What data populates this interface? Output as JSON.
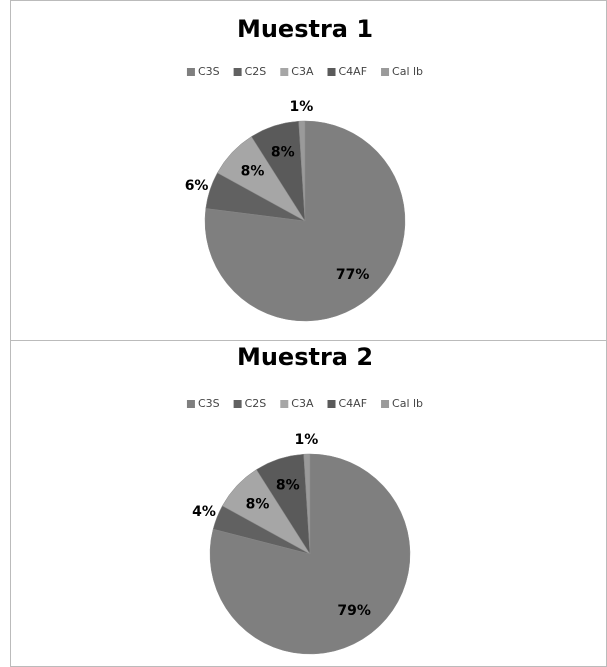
{
  "chart_data": [
    {
      "type": "pie",
      "title": "Muestra 1",
      "categories": [
        "C3S",
        "C2S",
        "C3A",
        "C4AF",
        "Cal lb"
      ],
      "values": [
        77,
        6,
        8,
        8,
        1
      ],
      "value_labels": [
        "77%",
        "6%",
        "8%",
        "8%",
        "1%"
      ],
      "colors": [
        "#7f7f7f",
        "#616161",
        "#a6a6a6",
        "#5a5a5a",
        "#9a9a9a"
      ],
      "legend": "top"
    },
    {
      "type": "pie",
      "title": "Muestra 2",
      "categories": [
        "C3S",
        "C2S",
        "C3A",
        "C4AF",
        "Cal lb"
      ],
      "values": [
        79,
        4,
        8,
        8,
        1
      ],
      "value_labels": [
        "79%",
        "4%",
        "8%",
        "8%",
        "1%"
      ],
      "colors": [
        "#7f7f7f",
        "#616161",
        "#a6a6a6",
        "#5a5a5a",
        "#9a9a9a"
      ],
      "legend": "top"
    }
  ]
}
